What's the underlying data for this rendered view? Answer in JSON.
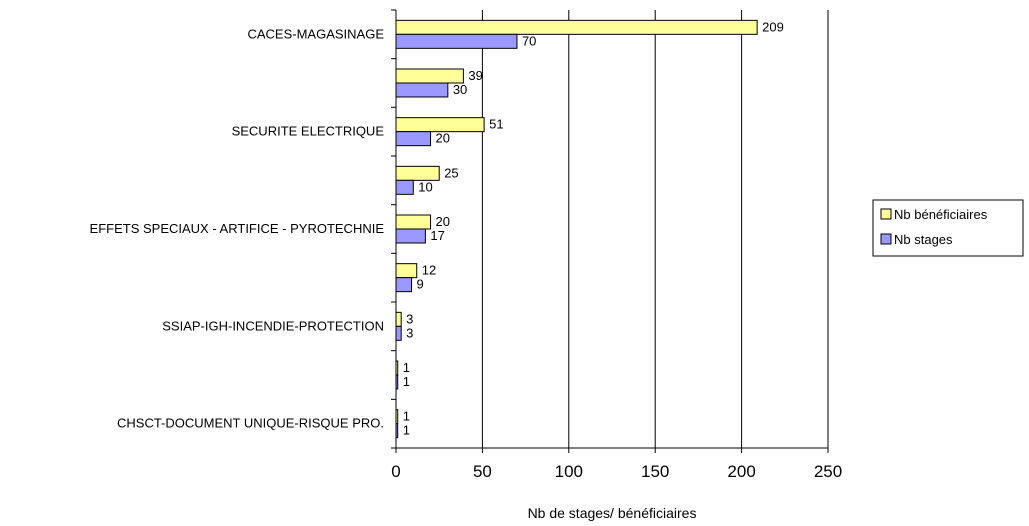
{
  "chart_data": {
    "type": "bar",
    "orientation": "horizontal",
    "categories": [
      "CACES-MAGASINAGE",
      "",
      "SECURITE ELECTRIQUE",
      "",
      "EFFETS SPECIAUX - ARTIFICE - PYROTECHNIE",
      "",
      "SSIAP-IGH-INCENDIE-PROTECTION",
      "",
      "CHSCT-DOCUMENT UNIQUE-RISQUE PRO."
    ],
    "series": [
      {
        "name": "Nb bénéficiaires",
        "color": "#ffff99",
        "values": [
          209,
          39,
          51,
          25,
          20,
          12,
          3,
          1,
          1
        ]
      },
      {
        "name": "Nb stages",
        "color": "#9999ff",
        "values": [
          70,
          30,
          20,
          10,
          17,
          9,
          3,
          1,
          1
        ]
      }
    ],
    "xlabel": "Nb de stages/ bénéficiaires",
    "xlim": [
      0,
      250
    ],
    "xticks": [
      "0",
      "50",
      "100",
      "150",
      "200",
      "250"
    ],
    "grid": "vertical",
    "legend": "right"
  }
}
